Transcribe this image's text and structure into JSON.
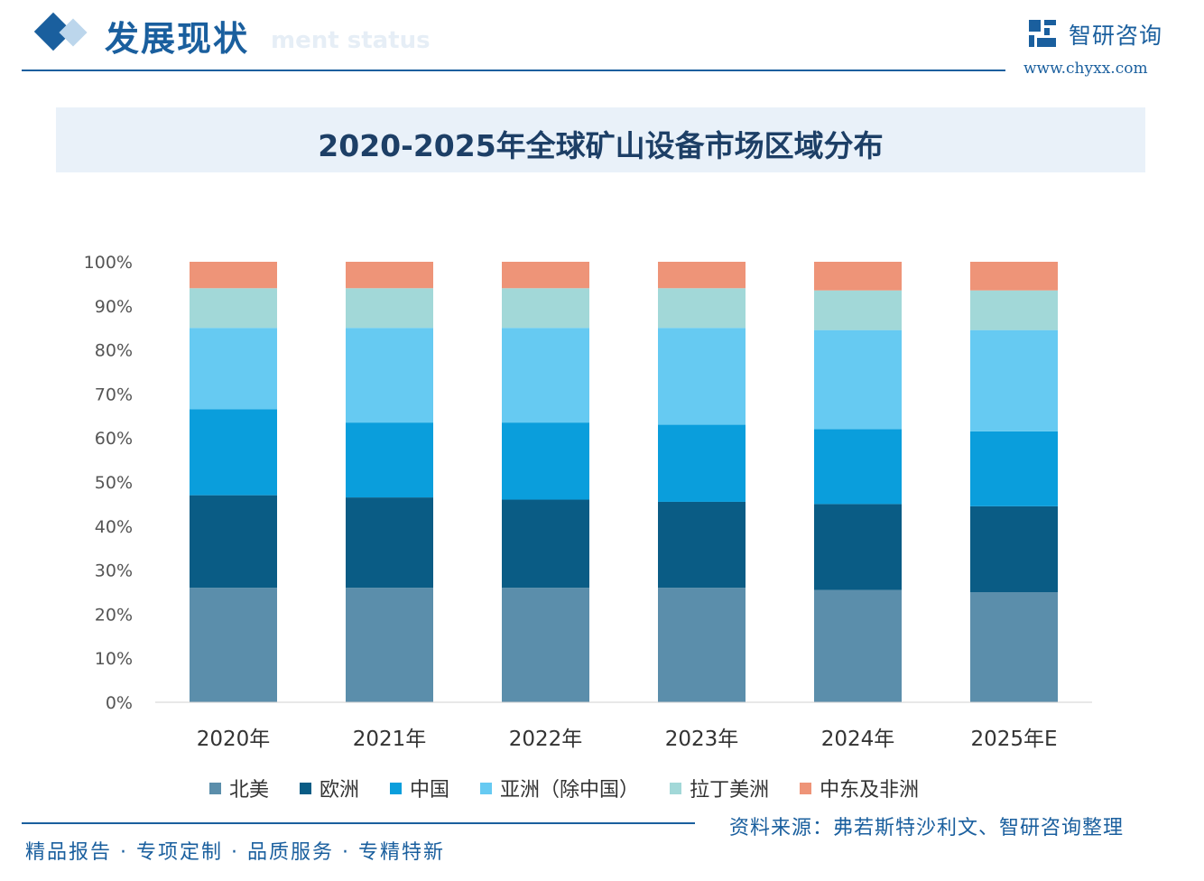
{
  "header": {
    "section_title": "发展现状",
    "section_subtitle": "ment status",
    "logo_name": "智研咨询",
    "logo_url": "www.chyxx.com"
  },
  "colors": {
    "primary": "#1a5f9e",
    "title_band": "#e9f1f9",
    "north_america": "#5b8eab",
    "europe": "#0a5c85",
    "china": "#0a9edc",
    "asia_ex_china": "#66caf2",
    "latin_america": "#a2d8d8",
    "middle_east_africa": "#ee9478"
  },
  "chart_data": {
    "type": "bar",
    "stacked": true,
    "title": "2020-2025年全球矿山设备市场区域分布",
    "xlabel": "",
    "ylabel": "",
    "ylim": [
      0,
      100
    ],
    "y_ticks": [
      "0%",
      "10%",
      "20%",
      "30%",
      "40%",
      "50%",
      "60%",
      "70%",
      "80%",
      "90%",
      "100%"
    ],
    "legend_position": "bottom",
    "categories": [
      "2020年",
      "2021年",
      "2022年",
      "2023年",
      "2024年",
      "2025年E"
    ],
    "series": [
      {
        "name": "北美",
        "color": "#5b8eab",
        "values": [
          26,
          26,
          26,
          26,
          25.5,
          25
        ]
      },
      {
        "name": "欧洲",
        "color": "#0a5c85",
        "values": [
          21,
          20.5,
          20,
          19.5,
          19.5,
          19.5
        ]
      },
      {
        "name": "中国",
        "color": "#0a9edc",
        "values": [
          19.5,
          17,
          17.5,
          17.5,
          17,
          17
        ]
      },
      {
        "name": "亚洲（除中国）",
        "color": "#66caf2",
        "values": [
          18.5,
          21.5,
          21.5,
          22,
          22.5,
          23
        ]
      },
      {
        "name": "拉丁美洲",
        "color": "#a2d8d8",
        "values": [
          9,
          9,
          9,
          9,
          9,
          9
        ]
      },
      {
        "name": "中东及非洲",
        "color": "#ee9478",
        "values": [
          6,
          6,
          6,
          6,
          6.5,
          6.5
        ]
      }
    ]
  },
  "footer": {
    "slogan": "精品报告 · 专项定制 · 品质服务 · 专精特新",
    "source": "资料来源：弗若斯特沙利文、智研咨询整理"
  }
}
